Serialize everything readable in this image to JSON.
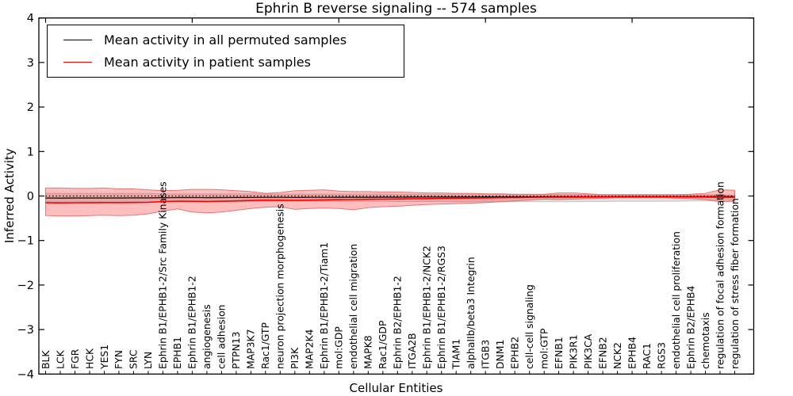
{
  "chart_data": {
    "type": "line",
    "title": "Ephrin B reverse signaling -- 574 samples",
    "xlabel": "Cellular Entities",
    "ylabel": "Inferred Activity",
    "ylim": [
      -4,
      4
    ],
    "yticks": [
      4,
      3,
      2,
      1,
      0,
      -1,
      -2,
      -3,
      -4
    ],
    "grid": false,
    "legend_position": "upper left",
    "top_ticks_at": [
      0,
      10,
      20,
      30,
      40
    ],
    "zero_line": {
      "y": 0,
      "style": "dotted",
      "color": "#000000"
    },
    "categories": [
      "BLK",
      "LCK",
      "FGR",
      "HCK",
      "YES1",
      "FYN",
      "SRC",
      "LYN",
      "Ephrin B1/EPHB1-2/Src Family Kinases",
      "EPHB1",
      "Ephrin B1/EPHB1-2",
      "angiogenesis",
      "cell adhesion",
      "PTPN13",
      "MAP3K7",
      "Rac1/GTP",
      "neuron projection morphogenesis",
      "PI3K",
      "MAP2K4",
      "Ephrin B1/EPHB1-2/Tiam1",
      "mol:GDP",
      "endothelial cell migration",
      "MAPK8",
      "Rac1/GDP",
      "Ephrin B2/EPHB1-2",
      "ITGA2B",
      "Ephrin B1/EPHB1-2/NCK2",
      "Ephrin B1/EPHB1-2/RGS3",
      "TIAM1",
      "alphaIIb/beta3 Integrin",
      "ITGB3",
      "DNM1",
      "EPHB2",
      "cell-cell signaling",
      "mol:GTP",
      "EFNB1",
      "PIK3R1",
      "PIK3CA",
      "EFNB2",
      "NCK2",
      "EPHB4",
      "RAC1",
      "RGS3",
      "endothelial cell proliferation",
      "Ephrin B2/EPHB4",
      "chemotaxis",
      "regulation of focal adhesion formation",
      "regulation of stress fiber formation"
    ],
    "series": [
      {
        "name": "Mean activity in all permuted samples",
        "color": "#000000",
        "values": [
          -0.045,
          -0.046,
          -0.045,
          -0.044,
          -0.045,
          -0.044,
          -0.043,
          -0.042,
          -0.038,
          -0.035,
          -0.036,
          -0.037,
          -0.036,
          -0.034,
          -0.032,
          -0.03,
          -0.031,
          -0.032,
          -0.031,
          -0.03,
          -0.029,
          -0.029,
          -0.028,
          -0.027,
          -0.026,
          -0.025,
          -0.024,
          -0.023,
          -0.022,
          -0.021,
          -0.02,
          -0.019,
          -0.018,
          -0.017,
          -0.016,
          -0.016,
          -0.015,
          -0.015,
          -0.014,
          -0.014,
          -0.013,
          -0.013,
          -0.013,
          -0.012,
          -0.012,
          -0.012,
          -0.013,
          -0.013
        ]
      },
      {
        "name": "Mean activity in patient samples",
        "color": "#ff0000",
        "values": [
          -0.15,
          -0.155,
          -0.152,
          -0.15,
          -0.148,
          -0.147,
          -0.146,
          -0.143,
          -0.125,
          -0.115,
          -0.12,
          -0.122,
          -0.118,
          -0.11,
          -0.1,
          -0.092,
          -0.095,
          -0.096,
          -0.092,
          -0.088,
          -0.082,
          -0.08,
          -0.075,
          -0.071,
          -0.067,
          -0.062,
          -0.058,
          -0.054,
          -0.05,
          -0.046,
          -0.042,
          -0.038,
          -0.034,
          -0.03,
          -0.027,
          -0.026,
          -0.025,
          -0.023,
          -0.021,
          -0.02,
          -0.019,
          -0.019,
          -0.019,
          -0.02,
          -0.021,
          -0.023,
          -0.028,
          -0.028
        ]
      }
    ],
    "bands": [
      {
        "name": "permuted-sample-range",
        "fill": "rgba(130,130,130,0.25)",
        "edge": "rgba(150,150,150,0.45)",
        "upper": [
          0.06,
          0.06,
          0.06,
          0.06,
          0.06,
          0.06,
          0.06,
          0.06,
          0.05,
          0.05,
          0.05,
          0.05,
          0.05,
          0.05,
          0.05,
          0.05,
          0.045,
          0.045,
          0.045,
          0.045,
          0.045,
          0.045,
          0.045,
          0.045,
          0.04,
          0.04,
          0.04,
          0.04,
          0.04,
          0.04,
          0.04,
          0.04,
          0.035,
          0.035,
          0.035,
          0.035,
          0.035,
          0.035,
          0.035,
          0.035,
          0.03,
          0.03,
          0.03,
          0.03,
          0.03,
          0.03,
          0.03,
          0.025
        ],
        "lower": [
          -0.13,
          -0.13,
          -0.13,
          -0.13,
          -0.13,
          -0.13,
          -0.13,
          -0.13,
          -0.125,
          -0.125,
          -0.125,
          -0.125,
          -0.125,
          -0.125,
          -0.125,
          -0.125,
          -0.12,
          -0.12,
          -0.12,
          -0.12,
          -0.12,
          -0.12,
          -0.12,
          -0.12,
          -0.125,
          -0.125,
          -0.125,
          -0.125,
          -0.13,
          -0.13,
          -0.13,
          -0.13,
          -0.13,
          -0.13,
          -0.13,
          -0.13,
          -0.13,
          -0.125,
          -0.125,
          -0.12,
          -0.12,
          -0.12,
          -0.12,
          -0.12,
          -0.11,
          -0.11,
          -0.1,
          -0.1
        ]
      },
      {
        "name": "patient-sample-range",
        "fill": "rgba(255,40,40,0.30)",
        "edge": "rgba(225,100,100,0.85)",
        "upper": [
          0.18,
          0.18,
          0.17,
          0.17,
          0.18,
          0.16,
          0.16,
          0.14,
          0.12,
          0.13,
          0.15,
          0.15,
          0.14,
          0.12,
          0.1,
          0.06,
          0.08,
          0.12,
          0.13,
          0.14,
          0.11,
          0.1,
          0.1,
          0.09,
          0.09,
          0.08,
          0.07,
          0.07,
          0.06,
          0.06,
          0.05,
          0.05,
          0.04,
          0.04,
          0.04,
          0.07,
          0.07,
          0.05,
          0.03,
          0.03,
          0.03,
          0.03,
          0.03,
          0.03,
          0.04,
          0.06,
          0.14,
          0.13
        ],
        "lower": [
          -0.44,
          -0.45,
          -0.45,
          -0.44,
          -0.43,
          -0.44,
          -0.43,
          -0.4,
          -0.34,
          -0.29,
          -0.36,
          -0.38,
          -0.36,
          -0.32,
          -0.28,
          -0.25,
          -0.24,
          -0.3,
          -0.28,
          -0.27,
          -0.28,
          -0.31,
          -0.26,
          -0.24,
          -0.23,
          -0.21,
          -0.19,
          -0.18,
          -0.17,
          -0.16,
          -0.15,
          -0.13,
          -0.11,
          -0.09,
          -0.07,
          -0.08,
          -0.07,
          -0.06,
          -0.05,
          -0.04,
          -0.04,
          -0.04,
          -0.04,
          -0.05,
          -0.06,
          -0.08,
          -0.13,
          -0.12
        ]
      }
    ]
  }
}
